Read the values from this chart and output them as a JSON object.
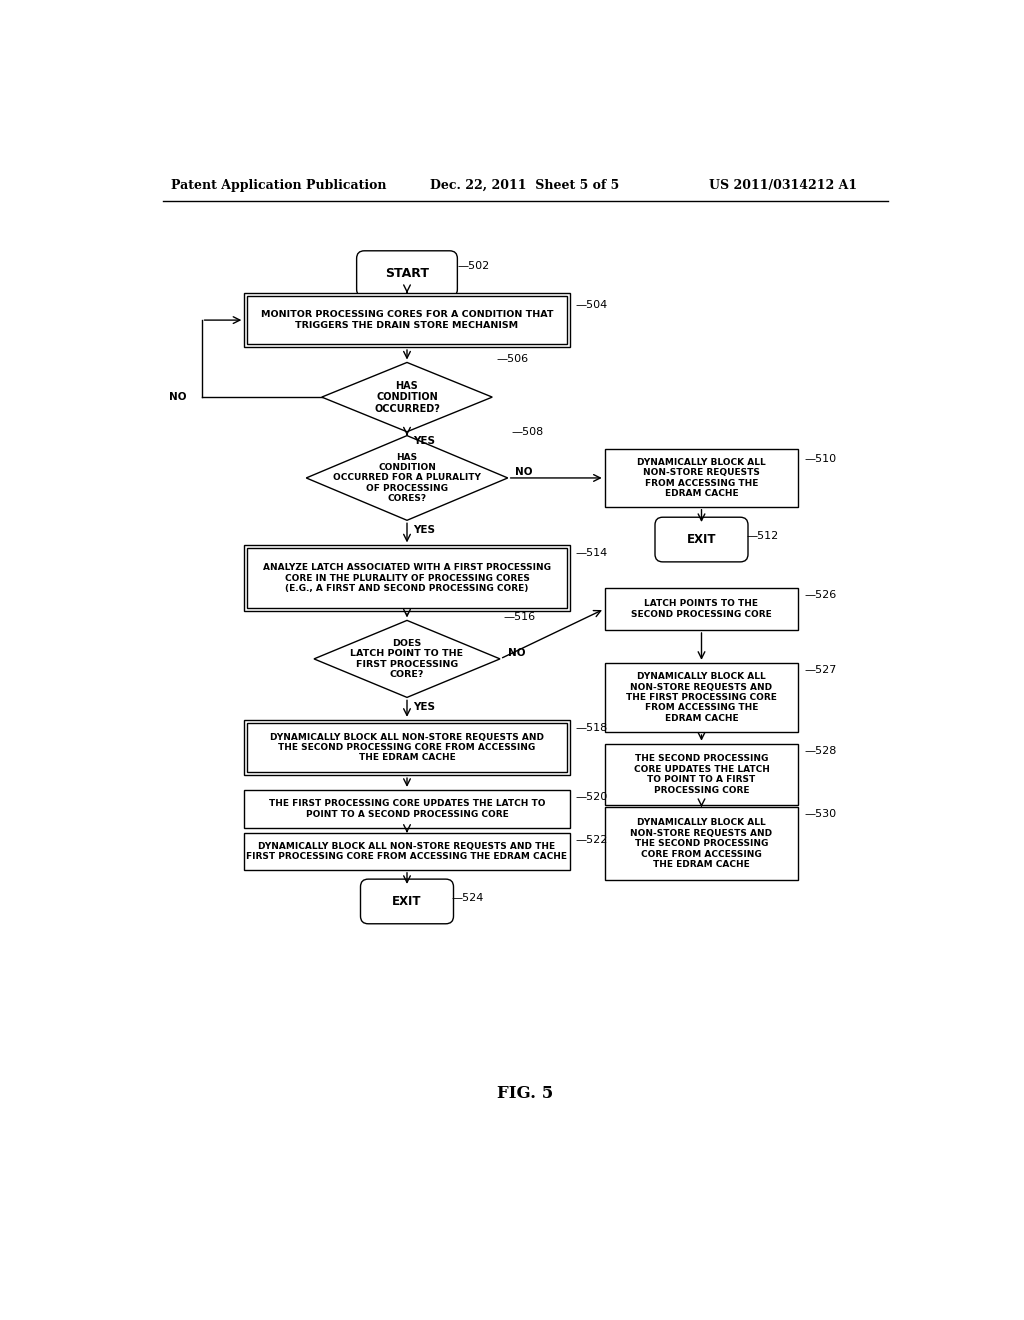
{
  "header_left": "Patent Application Publication",
  "header_mid": "Dec. 22, 2011  Sheet 5 of 5",
  "header_right": "US 2011/0314212 A1",
  "footer": "FIG. 5",
  "bg_color": "#ffffff"
}
